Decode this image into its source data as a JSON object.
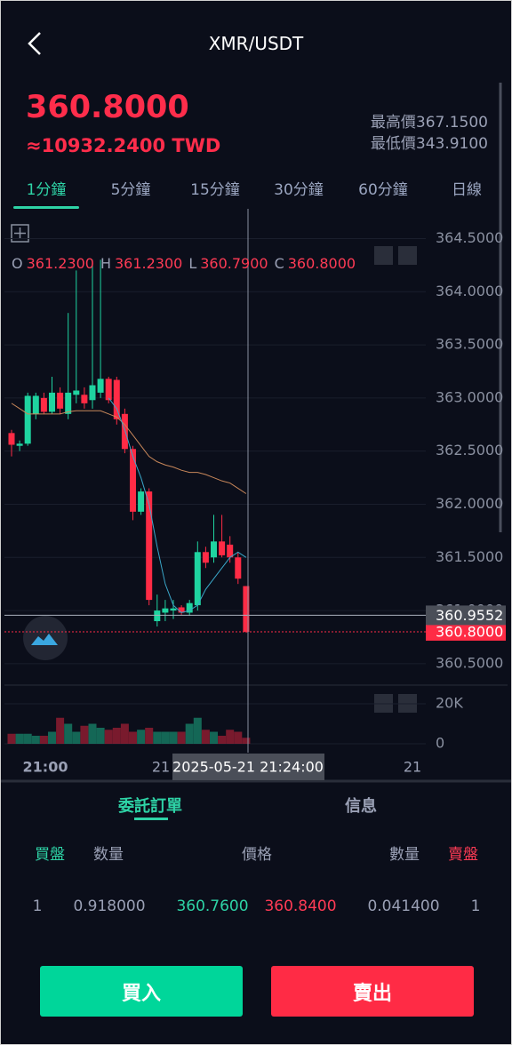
{
  "header": {
    "title": "XMR/USDT"
  },
  "price": {
    "last": "360.8000",
    "fiat": "≈10932.2400 TWD",
    "high_label": "最高價",
    "high": "367.1500",
    "low_label": "最低價",
    "low": "343.9100"
  },
  "tabs": {
    "items": [
      "1分鐘",
      "5分鐘",
      "15分鐘",
      "30分鐘",
      "60分鐘",
      "日線"
    ],
    "active": 0
  },
  "chart_data": {
    "type": "candlestick",
    "up_color": "#1fd4a0",
    "down_color": "#ff2b45",
    "legend": {
      "keys": [
        "O",
        "H",
        "L",
        "C"
      ],
      "labels": [
        "361.2300",
        "361.2300",
        "360.7900",
        "360.8000"
      ]
    },
    "open": [
      362.67,
      362.55,
      362.57,
      362.85,
      363.0,
      362.87,
      363.05,
      362.85,
      363.03,
      363.03,
      362.98,
      363.05,
      363.18,
      363.17,
      362.85,
      362.52,
      361.93,
      362.12,
      360.9,
      360.98,
      361.0,
      361.03,
      360.98,
      361.05,
      361.55,
      361.5,
      361.65,
      361.62,
      361.5,
      361.23
    ],
    "high": [
      362.7,
      362.6,
      363.05,
      363.05,
      363.05,
      363.2,
      363.1,
      363.8,
      364.2,
      363.1,
      364.3,
      364.3,
      363.2,
      363.2,
      362.9,
      362.55,
      362.15,
      362.15,
      361.15,
      361.1,
      361.1,
      361.05,
      361.1,
      361.65,
      361.6,
      361.9,
      361.9,
      361.7,
      361.55,
      361.23
    ],
    "low": [
      362.45,
      362.5,
      362.55,
      362.8,
      362.85,
      362.85,
      362.85,
      362.8,
      362.95,
      362.9,
      362.9,
      363.0,
      362.95,
      362.75,
      362.48,
      361.85,
      361.9,
      361.05,
      360.85,
      360.9,
      360.92,
      360.96,
      360.95,
      361.0,
      361.4,
      361.45,
      361.5,
      361.45,
      361.25,
      360.79
    ],
    "close": [
      362.56,
      362.57,
      363.02,
      363.02,
      362.87,
      363.05,
      362.9,
      363.05,
      363.07,
      362.95,
      363.12,
      363.18,
      362.98,
      362.8,
      362.52,
      361.93,
      362.12,
      361.1,
      361.0,
      361.02,
      361.02,
      360.98,
      361.07,
      361.55,
      361.45,
      361.65,
      361.52,
      361.5,
      361.3,
      360.8
    ],
    "ma_slow": [
      362.95,
      362.9,
      362.85,
      362.85,
      362.85,
      362.85,
      362.85,
      362.87,
      362.88,
      362.88,
      362.88,
      362.88,
      362.85,
      362.82,
      362.75,
      362.65,
      362.55,
      362.45,
      362.4,
      362.37,
      362.35,
      362.32,
      362.3,
      362.3,
      362.28,
      362.25,
      362.22,
      362.2,
      362.15,
      362.1
    ],
    "ma_fast": [
      null,
      null,
      null,
      null,
      null,
      null,
      null,
      null,
      null,
      null,
      null,
      null,
      363.0,
      362.9,
      362.7,
      362.45,
      362.25,
      362.0,
      361.6,
      361.25,
      361.05,
      360.98,
      361.0,
      361.05,
      361.2,
      361.3,
      361.4,
      361.5,
      361.55,
      361.5
    ],
    "ma_slow_color": "#c8875a",
    "ma_fast_color": "#3aa7c9",
    "ylim": [
      360.34,
      364.78
    ],
    "yticks": [
      {
        "value": 364.5,
        "label": "364.5000"
      },
      {
        "value": 364,
        "label": "364.0000"
      },
      {
        "value": 363.5,
        "label": "363.5000"
      },
      {
        "value": 363,
        "label": "363.0000"
      },
      {
        "value": 362.5,
        "label": "362.5000"
      },
      {
        "value": 362,
        "label": "362.0000"
      },
      {
        "value": 361.5,
        "label": "361.5000"
      },
      {
        "value": 361,
        "label": "361.0000"
      },
      {
        "value": 360.5,
        "label": "360.5000"
      }
    ],
    "last_price": {
      "value": 360.8,
      "label": "360.8000"
    },
    "crosshair_price": {
      "value": 360.9552,
      "label": "360.9552"
    },
    "crosshair_time": "2025-05-21 21:24:00",
    "xtick_labels": [
      "21:00",
      "21",
      "21"
    ],
    "volume": [
      5000,
      5000,
      5000,
      4000,
      4000,
      6000,
      13000,
      10000,
      6000,
      9000,
      10000,
      8000,
      7000,
      8000,
      10000,
      6000,
      7000,
      8000,
      6000,
      6000,
      6000,
      6000,
      10000,
      13000,
      7000,
      6000,
      4000,
      7000,
      6000,
      3000
    ],
    "volume_ylim": [
      0,
      29333
    ],
    "volume_yticks": [
      {
        "value": 20000,
        "label": "20K"
      },
      0
    ]
  },
  "order_tabs": [
    "委託訂單",
    "信息"
  ],
  "book": {
    "headers": [
      "買盤",
      "数量",
      "價格",
      "數量",
      "賣盤"
    ],
    "rows": [
      [
        "1",
        "0.918000",
        "360.7600",
        "360.8400",
        "0.041400",
        "1"
      ]
    ]
  },
  "buttons": {
    "buy": "買入",
    "sell": "賣出"
  }
}
